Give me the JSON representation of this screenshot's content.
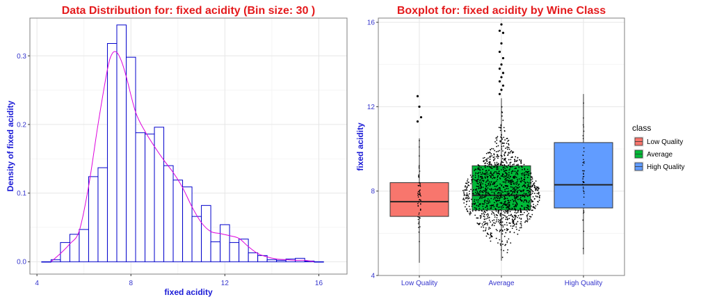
{
  "colors": {
    "title": "#e41a1c",
    "axis_text": "#1a1ad6",
    "tick_text": "#3333cc",
    "hist_bar_stroke": "#0000cc",
    "density_line": "#dd00dd",
    "panel_border": "#7f7f7f",
    "grid": "#e6e6e6",
    "low_quality": "#f8766d",
    "average": "#00ba38",
    "high_quality": "#619cff",
    "points": "#000000"
  },
  "chart_data": [
    {
      "type": "bar",
      "title": "Data Distribution for: fixed acidity (Bin size: 30 )",
      "xlabel": "fixed acidity",
      "ylabel": "Density of fixed acidity",
      "xlim": [
        3.7,
        17.2
      ],
      "ylim": [
        -0.018,
        0.355
      ],
      "xticks": [
        4,
        8,
        12,
        16
      ],
      "xtick_labels": [
        "4",
        "8",
        "12",
        "16"
      ],
      "yticks": [
        0.0,
        0.1,
        0.2,
        0.3
      ],
      "ytick_labels": [
        "0.0",
        "0.1",
        "0.2",
        "0.3"
      ],
      "grid": true,
      "bin_start": 4.2,
      "bin_width": 0.4,
      "values": [
        0.0,
        0.003,
        0.028,
        0.04,
        0.047,
        0.124,
        0.137,
        0.318,
        0.345,
        0.298,
        0.188,
        0.186,
        0.196,
        0.14,
        0.119,
        0.109,
        0.066,
        0.082,
        0.029,
        0.054,
        0.028,
        0.033,
        0.013,
        0.009,
        0.003,
        0.002,
        0.004,
        0.005,
        0.001,
        0.0
      ],
      "density": {
        "x": [
          4.6,
          5.0,
          5.4,
          5.8,
          6.2,
          6.6,
          7.0,
          7.2,
          7.4,
          7.6,
          7.8,
          8.2,
          8.6,
          9.0,
          9.4,
          9.8,
          10.2,
          10.6,
          11.0,
          11.4,
          11.8,
          12.2,
          12.6,
          13.0,
          13.4,
          13.8,
          14.2,
          14.6,
          15.0,
          15.4,
          15.8
        ],
        "y": [
          0.0,
          0.012,
          0.026,
          0.045,
          0.11,
          0.2,
          0.28,
          0.303,
          0.305,
          0.292,
          0.27,
          0.218,
          0.19,
          0.168,
          0.148,
          0.13,
          0.108,
          0.08,
          0.057,
          0.044,
          0.041,
          0.038,
          0.034,
          0.022,
          0.012,
          0.007,
          0.004,
          0.003,
          0.002,
          0.002,
          0.0
        ]
      }
    },
    {
      "type": "boxplot",
      "title": "Boxplot for: fixed acidity by Wine Class",
      "xlabel": "",
      "ylabel": "fixed acidity",
      "categories": [
        "Low Quality",
        "Average",
        "High Quality"
      ],
      "ylim": [
        4,
        16.2
      ],
      "yticks": [
        4,
        8,
        12,
        16
      ],
      "ytick_labels": [
        "4",
        "8",
        "12",
        "16"
      ],
      "grid": true,
      "legend": {
        "title": "class",
        "position": "right",
        "entries": [
          "Low Quality",
          "Average",
          "High Quality"
        ]
      },
      "boxes": [
        {
          "name": "Low Quality",
          "whisker_low": 4.6,
          "q1": 6.8,
          "median": 7.5,
          "q3": 8.4,
          "whisker_high": 10.5,
          "outliers": [
            12.5,
            12.0,
            11.5,
            11.3
          ]
        },
        {
          "name": "Average",
          "whisker_low": 4.7,
          "q1": 7.1,
          "median": 7.8,
          "q3": 9.2,
          "whisker_high": 12.4,
          "outliers": [
            12.6,
            12.8,
            13.0,
            13.2,
            13.4,
            13.6,
            13.8,
            14.0,
            14.3,
            14.6,
            15.0,
            15.5,
            15.6,
            15.9
          ]
        },
        {
          "name": "High Quality",
          "whisker_low": 5.0,
          "q1": 7.2,
          "median": 8.3,
          "q3": 10.3,
          "whisker_high": 12.6,
          "outliers": []
        }
      ]
    }
  ]
}
